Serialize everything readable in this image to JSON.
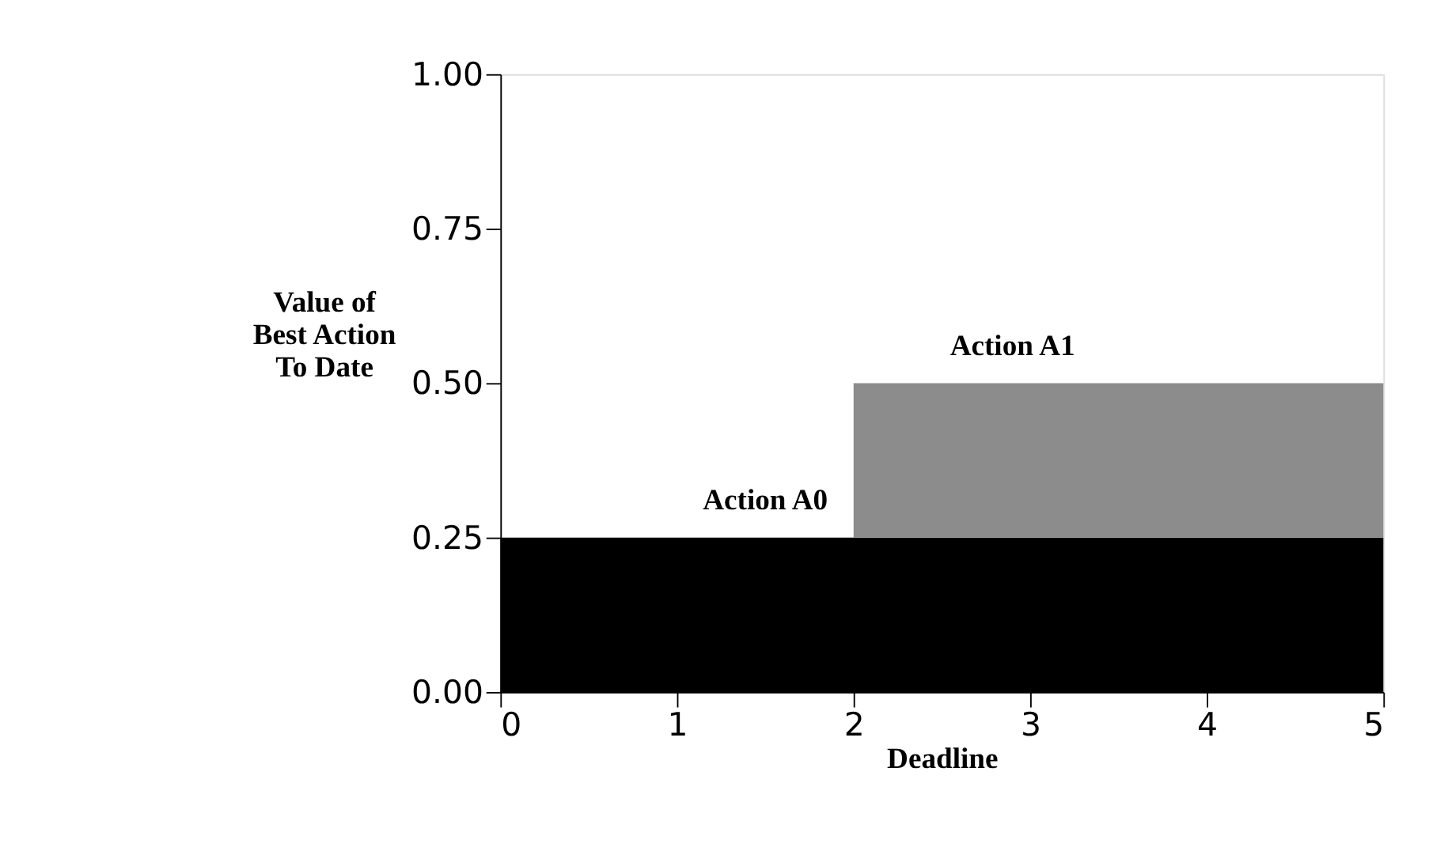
{
  "chart_data": {
    "type": "area",
    "stacked": true,
    "xlabel": "Deadline",
    "ylabel": "Value of\nBest Action\nTo Date",
    "xlim": [
      0,
      5
    ],
    "xticks": [
      0,
      1,
      2,
      3,
      4,
      5
    ],
    "ylim": [
      0,
      1
    ],
    "yticks": [
      {
        "value": 0,
        "label": "0.00"
      },
      {
        "value": 0.25,
        "label": "0.25"
      },
      {
        "value": 0.5,
        "label": "0.50"
      },
      {
        "value": 0.75,
        "label": "0.75"
      },
      {
        "value": 1,
        "label": "1.00"
      }
    ],
    "grid": false,
    "series": [
      {
        "name": "Action A0",
        "color": "#000000",
        "x": [
          0,
          5
        ],
        "values": [
          0.25,
          0.25
        ]
      },
      {
        "name": "Action A1",
        "color": "#8c8c8c",
        "x": [
          2,
          5
        ],
        "values": [
          0.25,
          0.25
        ]
      }
    ]
  }
}
